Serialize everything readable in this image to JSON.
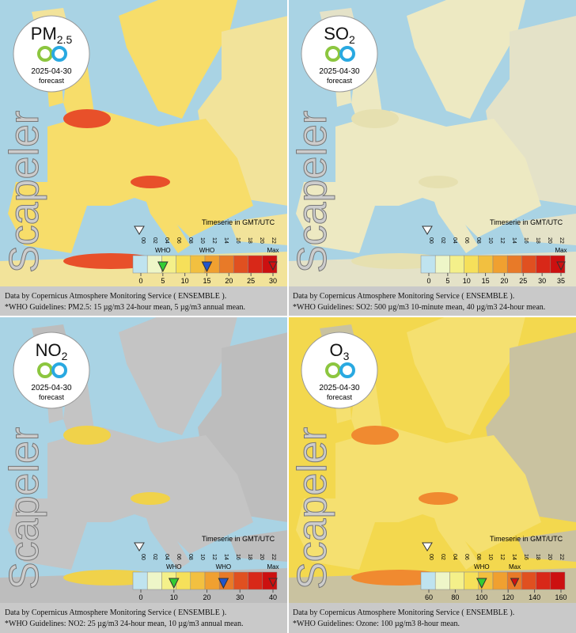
{
  "common": {
    "date": "2025-04-30",
    "forecast": "forecast",
    "brand": "Scapeler",
    "timeserie": "Timeserie in GMT/UTC",
    "max_label": "Max",
    "who_label": "WHO",
    "hours": [
      "00",
      "02",
      "04",
      "06",
      "08",
      "10",
      "12",
      "14",
      "16",
      "18",
      "20",
      "22"
    ],
    "source": "Data by Copernicus Atmosphere Monitoring Service ( ENSEMBLE )."
  },
  "panels": [
    {
      "name": "PM",
      "sub": "2.5",
      "scale": [
        0,
        5,
        10,
        15,
        20,
        25,
        30
      ],
      "who": [
        {
          "value": 5,
          "color": "#33cc33"
        },
        {
          "value": 15,
          "color": "#2255cc"
        }
      ],
      "max": 30,
      "guideline": "*WHO Guidelines: PM2.5: 15 µg/m3 24-hour mean, 5 µg/m3 annual mean."
    },
    {
      "name": "SO",
      "sub": "2",
      "scale": [
        0,
        5,
        10,
        15,
        20,
        25,
        30,
        35
      ],
      "max": 35,
      "guideline": "*WHO Guidelines: SO2: 500 µg/m3 10-minute mean, 40 µg/m3 24-hour mean."
    },
    {
      "name": "NO",
      "sub": "2",
      "scale": [
        0,
        10,
        20,
        30,
        40
      ],
      "who": [
        {
          "value": 10,
          "color": "#33cc33"
        },
        {
          "value": 25,
          "color": "#2255cc"
        }
      ],
      "max": 40,
      "guideline": "*WHO Guidelines: NO2: 25 µg/m3 24-hour mean, 10 µg/m3 annual mean."
    },
    {
      "name": "O",
      "sub": "3",
      "scale": [
        60,
        80,
        100,
        120,
        140,
        160
      ],
      "who": [
        {
          "value": 100,
          "color": "#33cc33"
        }
      ],
      "max": 125,
      "guideline": "*WHO Guidelines: Ozone: 100 µg/m3 8-hour mean."
    }
  ]
}
